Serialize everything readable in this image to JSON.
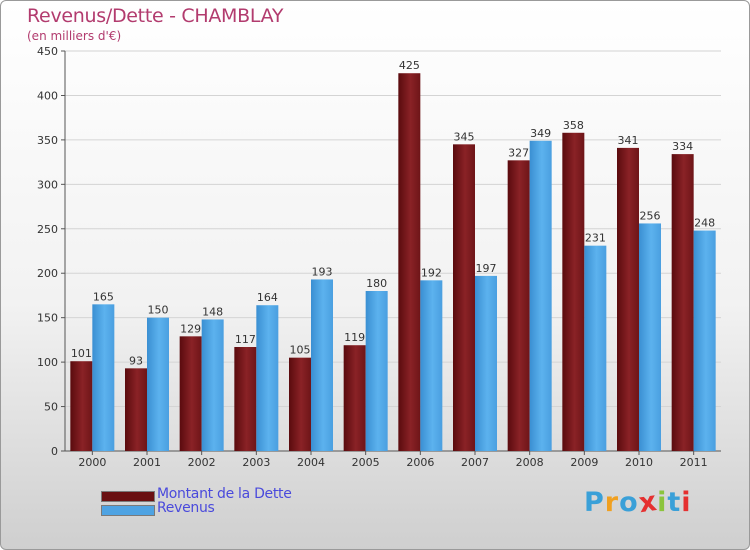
{
  "chart_data": {
    "type": "bar",
    "title": "Revenus/Dette - CHAMBLAY",
    "subtitle": "(en milliers d'€)",
    "categories": [
      "2000",
      "2001",
      "2002",
      "2003",
      "2004",
      "2005",
      "2006",
      "2007",
      "2008",
      "2009",
      "2010",
      "2011"
    ],
    "series": [
      {
        "name": "Montant de la Dette",
        "color": "#7a1518",
        "values": [
          101,
          93,
          129,
          117,
          105,
          119,
          425,
          345,
          327,
          358,
          341,
          334
        ]
      },
      {
        "name": "Revenus",
        "color": "#4ea3e3",
        "values": [
          165,
          150,
          148,
          164,
          193,
          180,
          192,
          197,
          349,
          231,
          256,
          248
        ]
      }
    ],
    "yticks": [
      "0",
      "50",
      "100",
      "150",
      "200",
      "250",
      "300",
      "350",
      "400",
      "450"
    ],
    "ylim": [
      0,
      450
    ],
    "grid": true,
    "legend_position": "bottom-left"
  },
  "logo": {
    "text": "Proxiti",
    "letters": [
      "P",
      "r",
      "o",
      "x",
      "i",
      "t",
      "i"
    ],
    "colors": [
      "#3aa0d8",
      "#f0a020",
      "#3aa0d8",
      "#e53030",
      "#8bc43c",
      "#3aa0d8",
      "#e53030"
    ]
  }
}
